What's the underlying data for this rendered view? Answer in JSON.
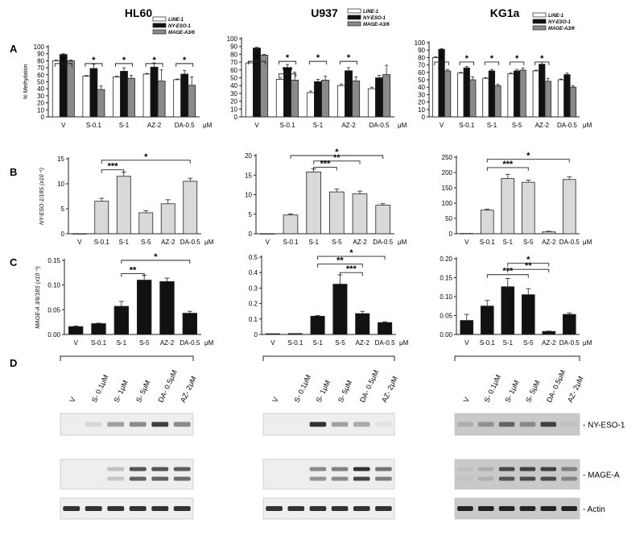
{
  "columns": [
    "HL60",
    "U937",
    "KG1a"
  ],
  "panel_letters": [
    "A",
    "B",
    "C",
    "D"
  ],
  "legend": [
    "LINE-1",
    "NY-ESO-1",
    "MAGE-A3/6"
  ],
  "unit": "μM",
  "colors": {
    "white_bar": "#ffffff",
    "black_bar": "#111111",
    "gray_bar": "#8a8a8a",
    "light_bar": "#d9d9d9",
    "axis": "#222222"
  },
  "chart_data": [
    {
      "id": "A-HL60",
      "type": "bar",
      "panel": "A",
      "column": "HL60",
      "ylabel": "% Methylation",
      "yticks": [
        "0",
        "10",
        "20",
        "30",
        "40",
        "50",
        "60",
        "70",
        "80",
        "90",
        "100"
      ],
      "ylim": [
        0,
        100
      ],
      "categories": [
        "V",
        "S-0.1",
        "S-1",
        "AZ-2",
        "DA-0.5"
      ],
      "series": [
        {
          "name": "LINE-1",
          "values": [
            80,
            58,
            57,
            61,
            53
          ]
        },
        {
          "name": "NY-ESO-1",
          "values": [
            89,
            69,
            65,
            71,
            61
          ]
        },
        {
          "name": "MAGE-A3/6",
          "values": [
            80,
            39,
            55,
            51,
            45
          ]
        }
      ],
      "errors": [
        [
          1,
          1,
          1,
          1,
          1
        ],
        [
          1,
          6,
          5,
          6,
          5
        ],
        [
          1,
          5,
          4,
          16,
          12
        ]
      ],
      "sig": [
        {
          "label": "*",
          "from": 0.72,
          "to": 1.28,
          "y": 76
        },
        {
          "label": "*",
          "from": 1.72,
          "to": 2.28,
          "y": 76
        },
        {
          "label": "*",
          "from": 2.72,
          "to": 3.28,
          "y": 76
        },
        {
          "label": "*",
          "from": 3.72,
          "to": 4.28,
          "y": 76
        },
        {
          "label": "*",
          "from": 4.72,
          "to": 5.28,
          "y": 76
        }
      ]
    },
    {
      "id": "A-U937",
      "type": "bar",
      "panel": "A",
      "column": "U937",
      "ylabel": "",
      "yticks": [
        "0",
        "10",
        "20",
        "30",
        "40",
        "50",
        "60",
        "70",
        "80",
        "90",
        "100"
      ],
      "ylim": [
        0,
        100
      ],
      "categories": [
        "V",
        "S-0.1",
        "S-1",
        "AZ-2",
        "DA-0.5"
      ],
      "series": [
        {
          "name": "LINE-1",
          "values": [
            69,
            48,
            31,
            40,
            36
          ]
        },
        {
          "name": "NY-ESO-1",
          "values": [
            88,
            63,
            45,
            59,
            50
          ]
        },
        {
          "name": "MAGE-A3/6",
          "values": [
            79,
            47,
            47,
            46,
            54
          ]
        }
      ],
      "errors": [
        [
          2,
          2,
          2,
          2,
          2
        ],
        [
          1,
          4,
          3,
          4,
          3
        ],
        [
          1,
          10,
          5,
          5,
          12
        ]
      ],
      "sig": [
        {
          "label": "*",
          "from": 0.72,
          "to": 1.28,
          "y": 71
        },
        {
          "label": "*",
          "from": 1.72,
          "to": 2.28,
          "y": 71
        },
        {
          "label": "***",
          "from": 1.72,
          "to": 2.28,
          "y": 55
        },
        {
          "label": "*",
          "from": 2.72,
          "to": 3.28,
          "y": 71
        },
        {
          "label": "*",
          "from": 3.72,
          "to": 4.28,
          "y": 71
        }
      ]
    },
    {
      "id": "A-KG1a",
      "type": "bar",
      "panel": "A",
      "column": "KG1a",
      "ylabel": "",
      "yticks": [
        "0",
        "10",
        "20",
        "30",
        "40",
        "50",
        "60",
        "70",
        "80",
        "90",
        "100"
      ],
      "ylim": [
        0,
        100
      ],
      "categories": [
        "V",
        "S-0.1",
        "S-1",
        "S-5",
        "AZ-2",
        "DA-0.5"
      ],
      "series": [
        {
          "name": "LINE-1",
          "values": [
            80,
            59,
            52,
            58,
            62,
            50
          ]
        },
        {
          "name": "NY-ESO-1",
          "values": [
            91,
            66,
            62,
            62,
            71,
            57
          ]
        },
        {
          "name": "MAGE-A3/6",
          "values": [
            62,
            50,
            42,
            63,
            48,
            40
          ]
        }
      ],
      "errors": [
        [
          1,
          1,
          1,
          1,
          1,
          1
        ],
        [
          1,
          2,
          2,
          2,
          3,
          2
        ],
        [
          2,
          4,
          2,
          3,
          4,
          2
        ]
      ],
      "sig": [
        {
          "label": "*",
          "from": 0.72,
          "to": 1.28,
          "y": 74
        },
        {
          "label": "*",
          "from": 1.72,
          "to": 2.28,
          "y": 74
        },
        {
          "label": "*",
          "from": 2.72,
          "to": 3.28,
          "y": 74
        },
        {
          "label": "*",
          "from": 3.72,
          "to": 4.28,
          "y": 74
        },
        {
          "label": "*",
          "from": 4.72,
          "to": 5.28,
          "y": 74
        }
      ]
    },
    {
      "id": "B-HL60",
      "type": "bar",
      "panel": "B",
      "column": "HL60",
      "ylabel": "NY-ESO-1/18S (x10⁻¹)",
      "yticks": [
        "0",
        "5",
        "10",
        "15"
      ],
      "ylim": [
        0,
        15
      ],
      "categories": [
        "V",
        "S-0.1",
        "S-1",
        "S-5",
        "AZ-2",
        "DA-0.5"
      ],
      "values": [
        0,
        6.5,
        11.5,
        4.2,
        6.0,
        10.5
      ],
      "errors": [
        0,
        0.6,
        0.8,
        0.4,
        0.8,
        0.6
      ],
      "sig": [
        {
          "label": "***",
          "from": 2,
          "to": 3,
          "y": 12.8
        },
        {
          "label": "*",
          "from": 2,
          "to": 6,
          "y": 14.7
        }
      ]
    },
    {
      "id": "B-U937",
      "type": "bar",
      "panel": "B",
      "column": "U937",
      "ylabel": "",
      "yticks": [
        "0",
        "5",
        "10",
        "15",
        "20"
      ],
      "ylim": [
        0,
        20
      ],
      "categories": [
        "V",
        "S-0.1",
        "S-1",
        "S-5",
        "AZ-2",
        "DA-0.5"
      ],
      "values": [
        0,
        4.8,
        15.8,
        10.7,
        10.2,
        7.3
      ],
      "errors": [
        0,
        0.3,
        0.8,
        0.7,
        0.7,
        0.4
      ],
      "sig": [
        {
          "label": "***",
          "from": 3,
          "to": 4,
          "y": 17.0
        },
        {
          "label": "**",
          "from": 3,
          "to": 5,
          "y": 18.6
        },
        {
          "label": "*",
          "from": 2,
          "to": 6,
          "y": 20.0
        }
      ]
    },
    {
      "id": "B-KG1a",
      "type": "bar",
      "panel": "B",
      "column": "KG1a",
      "ylabel": "",
      "yticks": [
        "0",
        "50",
        "100",
        "150",
        "200",
        "250"
      ],
      "ylim": [
        0,
        250
      ],
      "categories": [
        "V",
        "S-0.1",
        "S-1",
        "S-5",
        "AZ-2",
        "DA-0.5"
      ],
      "values": [
        1,
        77,
        180,
        168,
        6,
        177
      ],
      "errors": [
        0,
        3,
        14,
        7,
        2,
        9
      ],
      "sig": [
        {
          "label": "***",
          "from": 2,
          "to": 4,
          "y": 216
        },
        {
          "label": "*",
          "from": 2,
          "to": 6,
          "y": 243
        }
      ]
    },
    {
      "id": "C-HL60",
      "type": "bar",
      "panel": "C",
      "column": "HL60",
      "ylabel": "MAGE-A 3/6/18S (x10⁻¹)",
      "yticks": [
        "0.00",
        "0.05",
        "0.10",
        "0.15"
      ],
      "ylim": [
        0,
        0.15
      ],
      "categories": [
        "V",
        "S-0.1",
        "S-1",
        "S-5",
        "AZ-2",
        "DA-0.5"
      ],
      "values": [
        0.016,
        0.022,
        0.057,
        0.11,
        0.107,
        0.043
      ],
      "errors": [
        0.001,
        0.001,
        0.01,
        0.01,
        0.007,
        0.004
      ],
      "sig": [
        {
          "label": "**",
          "from": 3,
          "to": 4,
          "y": 0.123
        },
        {
          "label": "*",
          "from": 3,
          "to": 6,
          "y": 0.15
        }
      ]
    },
    {
      "id": "C-U937",
      "type": "bar",
      "panel": "C",
      "column": "U937",
      "ylabel": "",
      "yticks": [
        "0",
        "0.1",
        "0.2",
        "0.3",
        "0.4",
        "0.5"
      ],
      "ylim": [
        0,
        0.5
      ],
      "categories": [
        "V",
        "S-0.1",
        "S-1",
        "S-5",
        "AZ-2",
        "DA-0.5"
      ],
      "values": [
        0.005,
        0.006,
        0.118,
        0.325,
        0.135,
        0.077
      ],
      "errors": [
        0,
        0,
        0.005,
        0.06,
        0.015,
        0.005
      ],
      "sig": [
        {
          "label": "***",
          "from": 4,
          "to": 5,
          "y": 0.4
        },
        {
          "label": "**",
          "from": 3,
          "to": 5,
          "y": 0.455
        },
        {
          "label": "*",
          "from": 3,
          "to": 6,
          "y": 0.505
        }
      ]
    },
    {
      "id": "C-KG1a",
      "type": "bar",
      "panel": "C",
      "column": "KG1a",
      "ylabel": "",
      "yticks": [
        "0.00",
        "0.05",
        "0.10",
        "0.15",
        "0.20"
      ],
      "ylim": [
        0,
        0.2
      ],
      "categories": [
        "V",
        "S-0.1",
        "S-1",
        "S-5",
        "AZ-2",
        "DA-0.5"
      ],
      "values": [
        0.037,
        0.075,
        0.126,
        0.105,
        0.008,
        0.053
      ],
      "errors": [
        0.016,
        0.015,
        0.022,
        0.016,
        0.001,
        0.004
      ],
      "sig": [
        {
          "label": "***",
          "from": 2,
          "to": 4,
          "y": 0.158
        },
        {
          "label": "**",
          "from": 3,
          "to": 5,
          "y": 0.172
        },
        {
          "label": "*",
          "from": 3,
          "to": 5,
          "y": 0.188
        }
      ]
    }
  ],
  "blots": {
    "lane_labels": [
      "V",
      "S- 0.1μM",
      "S- 1μM",
      "S- 5μM",
      "DA- 0.5μM",
      "AZ- 2μM"
    ],
    "labels": [
      "NY-ESO-1",
      "MAGE-A",
      "Actin"
    ],
    "panels": [
      {
        "column": "HL60",
        "dark": false,
        "rows": [
          {
            "name": "NY-ESO-1",
            "intensity": [
              0,
              0.1,
              0.35,
              0.45,
              0.8,
              0.45
            ]
          },
          {
            "name": "MAGE-A",
            "intensity": [
              0,
              0,
              0.2,
              0.7,
              0.7,
              0.65
            ]
          },
          {
            "name": "Actin",
            "intensity": [
              0.85,
              0.85,
              0.85,
              0.85,
              0.85,
              0.85
            ]
          }
        ]
      },
      {
        "column": "U937",
        "dark": false,
        "rows": [
          {
            "name": "NY-ESO-1",
            "intensity": [
              0,
              0,
              0.85,
              0.35,
              0.3,
              0.05
            ]
          },
          {
            "name": "MAGE-A",
            "intensity": [
              0,
              0,
              0.45,
              0.5,
              0.85,
              0.55
            ]
          },
          {
            "name": "Actin",
            "intensity": [
              0.85,
              0.85,
              0.85,
              0.85,
              0.85,
              0.85
            ]
          }
        ]
      },
      {
        "column": "KG1a",
        "dark": true,
        "rows": [
          {
            "name": "NY-ESO-1",
            "intensity": [
              0.15,
              0.3,
              0.55,
              0.35,
              0.75,
              0.05
            ]
          },
          {
            "name": "MAGE-A",
            "intensity": [
              0.05,
              0.15,
              0.7,
              0.75,
              0.75,
              0.4
            ]
          },
          {
            "name": "Actin",
            "intensity": [
              0.9,
              0.9,
              0.9,
              0.9,
              0.9,
              0.9
            ]
          }
        ]
      }
    ]
  }
}
